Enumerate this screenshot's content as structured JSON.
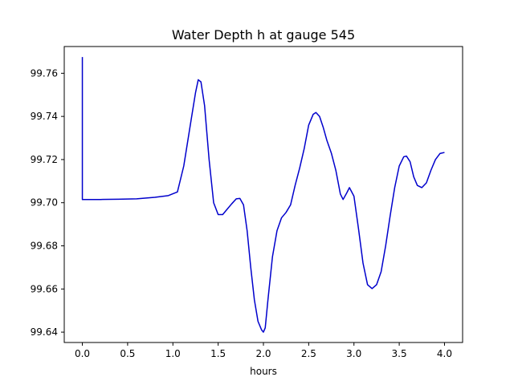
{
  "chart_data": {
    "type": "line",
    "title": "Water Depth h at gauge 545",
    "xlabel": "hours",
    "ylabel": "",
    "xlim": [
      -0.2,
      4.2
    ],
    "ylim": [
      99.6352,
      99.7724
    ],
    "x_ticks": [
      0.0,
      0.5,
      1.0,
      1.5,
      2.0,
      2.5,
      3.0,
      3.5,
      4.0
    ],
    "x_tick_labels": [
      "0.0",
      "0.5",
      "1.0",
      "1.5",
      "2.0",
      "2.5",
      "3.0",
      "3.5",
      "4.0"
    ],
    "y_ticks": [
      99.64,
      99.66,
      99.68,
      99.7,
      99.72,
      99.74,
      99.76
    ],
    "y_tick_labels": [
      "99.64",
      "99.66",
      "99.68",
      "99.70",
      "99.72",
      "99.74",
      "99.76"
    ],
    "grid": false,
    "legend": "none",
    "series": [
      {
        "color": "#0000cc",
        "x": [
          0.0,
          0.0,
          0.2,
          0.4,
          0.6,
          0.8,
          0.95,
          1.05,
          1.12,
          1.2,
          1.25,
          1.28,
          1.31,
          1.35,
          1.4,
          1.45,
          1.5,
          1.55,
          1.6,
          1.65,
          1.7,
          1.74,
          1.78,
          1.82,
          1.86,
          1.9,
          1.94,
          1.98,
          2.0,
          2.02,
          2.05,
          2.1,
          2.15,
          2.2,
          2.25,
          2.3,
          2.35,
          2.4,
          2.45,
          2.5,
          2.55,
          2.58,
          2.62,
          2.66,
          2.7,
          2.75,
          2.8,
          2.85,
          2.88,
          2.92,
          2.95,
          3.0,
          3.05,
          3.1,
          3.15,
          3.2,
          3.25,
          3.3,
          3.35,
          3.4,
          3.45,
          3.5,
          3.55,
          3.58,
          3.62,
          3.66,
          3.7,
          3.75,
          3.8,
          3.85,
          3.9,
          3.95,
          4.0
        ],
        "y": [
          99.7675,
          99.7015,
          99.7015,
          99.7016,
          99.7018,
          99.7025,
          99.7033,
          99.705,
          99.717,
          99.738,
          99.751,
          99.757,
          99.756,
          99.745,
          99.72,
          99.7,
          99.6945,
          99.6945,
          99.697,
          99.6995,
          99.7018,
          99.702,
          99.699,
          99.687,
          99.67,
          99.655,
          99.645,
          99.641,
          99.64,
          99.642,
          99.655,
          99.675,
          99.687,
          99.693,
          99.6955,
          99.699,
          99.708,
          99.716,
          99.725,
          99.736,
          99.741,
          99.7418,
          99.74,
          99.735,
          99.729,
          99.723,
          99.715,
          99.704,
          99.7015,
          99.7045,
          99.707,
          99.703,
          99.688,
          99.672,
          99.662,
          99.6602,
          99.662,
          99.668,
          99.68,
          99.694,
          99.707,
          99.717,
          99.7213,
          99.7216,
          99.719,
          99.712,
          99.708,
          99.707,
          99.7092,
          99.715,
          99.72,
          99.7228,
          99.7233
        ]
      }
    ]
  }
}
